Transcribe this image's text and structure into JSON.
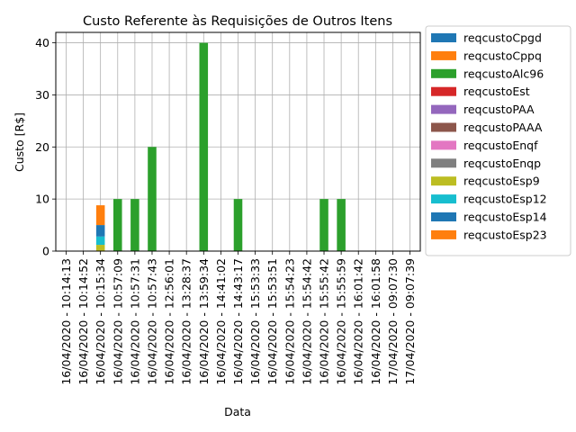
{
  "chart_data": {
    "type": "bar",
    "stacked": true,
    "title": "Custo Referente às Requisições de Outros Itens",
    "xlabel": "Data",
    "ylabel": "Custo [R$]",
    "ylim": [
      0,
      42
    ],
    "yticks": [
      0,
      10,
      20,
      30,
      40
    ],
    "grid": true,
    "legend_position": "outside-right",
    "categories": [
      "16/04/2020 - 10:14:13",
      "16/04/2020 - 10:14:52",
      "16/04/2020 - 10:15:34",
      "16/04/2020 - 10:57:09",
      "16/04/2020 - 10:57:31",
      "16/04/2020 - 10:57:43",
      "16/04/2020 - 12:56:01",
      "16/04/2020 - 13:28:37",
      "16/04/2020 - 13:59:34",
      "16/04/2020 - 14:41:02",
      "16/04/2020 - 14:43:17",
      "16/04/2020 - 15:53:33",
      "16/04/2020 - 15:53:51",
      "16/04/2020 - 15:54:23",
      "16/04/2020 - 15:54:42",
      "16/04/2020 - 15:55:42",
      "16/04/2020 - 15:55:59",
      "16/04/2020 - 16:01:42",
      "16/04/2020 - 16:01:58",
      "17/04/2020 - 09:07:30",
      "17/04/2020 - 09:07:39"
    ],
    "series": [
      {
        "name": "reqcustoCpgd",
        "color": "#1f77b4",
        "values": [
          0,
          0,
          0,
          0,
          0,
          0,
          0,
          0,
          0,
          0,
          0,
          0,
          0,
          0,
          0,
          0,
          0,
          0,
          0,
          0,
          0
        ]
      },
      {
        "name": "reqcustoCppq",
        "color": "#ff7f0e",
        "values": [
          0,
          0,
          0,
          0,
          0,
          0,
          0,
          0,
          0,
          0,
          0,
          0,
          0,
          0,
          0,
          0,
          0,
          0,
          0,
          0,
          0
        ]
      },
      {
        "name": "reqcustoAlc96",
        "color": "#2ca02c",
        "values": [
          0,
          0,
          0,
          10,
          10,
          20,
          0,
          0,
          40,
          0,
          10,
          0,
          0,
          0,
          0,
          10,
          10,
          0,
          0,
          0,
          0
        ]
      },
      {
        "name": "reqcustoEst",
        "color": "#d62728",
        "values": [
          0,
          0,
          0,
          0,
          0,
          0,
          0,
          0,
          0,
          0,
          0,
          0,
          0,
          0,
          0,
          0,
          0,
          0,
          0,
          0,
          0
        ]
      },
      {
        "name": "reqcustoPAA",
        "color": "#9467bd",
        "values": [
          0,
          0,
          0,
          0,
          0,
          0,
          0,
          0,
          0,
          0,
          0,
          0,
          0,
          0,
          0,
          0,
          0,
          0,
          0,
          0,
          0
        ]
      },
      {
        "name": "reqcustoPAAA",
        "color": "#8c564b",
        "values": [
          0,
          0,
          0,
          0,
          0,
          0,
          0,
          0,
          0,
          0,
          0,
          0,
          0,
          0,
          0,
          0,
          0,
          0,
          0,
          0,
          0
        ]
      },
      {
        "name": "reqcustoEnqf",
        "color": "#e377c2",
        "values": [
          0,
          0,
          0,
          0,
          0,
          0,
          0,
          0,
          0,
          0,
          0,
          0,
          0,
          0,
          0,
          0,
          0,
          0,
          0,
          0,
          0
        ]
      },
      {
        "name": "reqcustoEnqp",
        "color": "#7f7f7f",
        "values": [
          0,
          0,
          0,
          0,
          0,
          0,
          0,
          0,
          0,
          0,
          0,
          0,
          0,
          0,
          0,
          0,
          0,
          0,
          0,
          0,
          0
        ]
      },
      {
        "name": "reqcustoEsp9",
        "color": "#bcbd22",
        "values": [
          0,
          0,
          1.2,
          0,
          0,
          0,
          0,
          0,
          0,
          0,
          0,
          0,
          0,
          0,
          0,
          0,
          0,
          0,
          0,
          0,
          0
        ]
      },
      {
        "name": "reqcustoEsp12",
        "color": "#17becf",
        "values": [
          0,
          0,
          1.6,
          0,
          0,
          0,
          0,
          0,
          0,
          0,
          0,
          0,
          0,
          0,
          0,
          0,
          0,
          0,
          0,
          0,
          0
        ]
      },
      {
        "name": "reqcustoEsp14",
        "color": "#1f77b4",
        "values": [
          0,
          0,
          2.2,
          0,
          0,
          0,
          0,
          0,
          0,
          0,
          0,
          0,
          0,
          0,
          0,
          0,
          0,
          0,
          0,
          0,
          0
        ]
      },
      {
        "name": "reqcustoEsp23",
        "color": "#ff7f0e",
        "values": [
          0,
          0,
          3.8,
          0,
          0,
          0,
          0,
          0,
          0,
          0,
          0,
          0,
          0,
          0,
          0,
          0,
          0,
          0,
          0,
          0,
          0
        ]
      }
    ]
  }
}
